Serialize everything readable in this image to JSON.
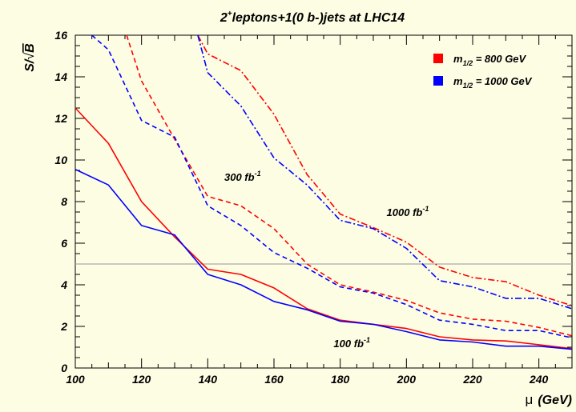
{
  "chart_data": {
    "type": "line",
    "title": {
      "base": "2",
      "sup": "+",
      "rest": "leptons+1(0 b-)jets at LHC14"
    },
    "xlabel": {
      "symbol": "μ",
      "unit": "(GeV)"
    },
    "ylabel": {
      "prefix": "S/",
      "sqrt_symbol": "√",
      "sqrt_arg": "B"
    },
    "xlim": [
      100,
      250
    ],
    "ylim": [
      0,
      16
    ],
    "x_ticks": [
      100,
      120,
      140,
      160,
      180,
      200,
      220,
      240
    ],
    "y_ticks": [
      0,
      2,
      4,
      6,
      8,
      10,
      12,
      14,
      16
    ],
    "grid": false,
    "reference_line": 5,
    "legend": {
      "position": "top-right",
      "entries": [
        {
          "label_base": "m",
          "label_sub": "1/2",
          "label_rest": " = 800 GeV",
          "color": "#ff0000"
        },
        {
          "label_base": "m",
          "label_sub": "1/2",
          "label_rest": " = 1000 GeV",
          "color": "#0000ff"
        }
      ]
    },
    "annotations": [
      {
        "text_base": "100 fb",
        "text_sup": "-1",
        "x": 178,
        "y": 1.0
      },
      {
        "text_base": "300 fb",
        "text_sup": "-1",
        "x": 145,
        "y": 9.0
      },
      {
        "text_base": "1000 fb",
        "text_sup": "-1",
        "x": 194,
        "y": 7.3
      }
    ],
    "series": [
      {
        "color": "#ff0000",
        "style": "solid",
        "luminosity": "100 fb-1",
        "x": [
          100,
          110,
          120,
          130,
          140,
          150,
          160,
          170,
          180,
          190,
          200,
          210,
          220,
          230,
          240,
          250
        ],
        "y": [
          12.5,
          10.8,
          8.0,
          6.3,
          4.75,
          4.5,
          3.85,
          2.85,
          2.3,
          2.1,
          1.9,
          1.5,
          1.35,
          1.3,
          1.12,
          0.93
        ]
      },
      {
        "color": "#0000ff",
        "style": "solid",
        "luminosity": "100 fb-1",
        "x": [
          100,
          110,
          120,
          130,
          140,
          150,
          160,
          170,
          180,
          190,
          200,
          210,
          220,
          230,
          240,
          250
        ],
        "y": [
          9.55,
          8.8,
          6.85,
          6.4,
          4.5,
          4.0,
          3.2,
          2.8,
          2.25,
          2.1,
          1.75,
          1.35,
          1.25,
          1.05,
          1.05,
          0.9
        ]
      },
      {
        "color": "#ff0000",
        "style": "dashed",
        "luminosity": "300 fb-1",
        "x": [
          115.5,
          120,
          130,
          140,
          150,
          160,
          170,
          180,
          190,
          200,
          210,
          220,
          230,
          240,
          250
        ],
        "y": [
          16,
          13.8,
          11.0,
          8.25,
          7.8,
          6.7,
          5.0,
          4.0,
          3.65,
          3.25,
          2.65,
          2.35,
          2.25,
          1.95,
          1.55
        ]
      },
      {
        "color": "#0000ff",
        "style": "dashed",
        "luminosity": "300 fb-1",
        "x": [
          105,
          110,
          120,
          130,
          140,
          150,
          160,
          170,
          180,
          190,
          200,
          210,
          220,
          230,
          240,
          250
        ],
        "y": [
          16,
          15.3,
          11.9,
          11.1,
          7.8,
          6.85,
          5.55,
          4.8,
          3.9,
          3.6,
          3.05,
          2.3,
          2.1,
          1.8,
          1.8,
          1.45
        ]
      },
      {
        "color": "#ff0000",
        "style": "dashdot",
        "luminosity": "1000 fb-1",
        "x": [
          137,
          140,
          150,
          160,
          170,
          180,
          190,
          200,
          210,
          220,
          230,
          240,
          250
        ],
        "y": [
          16,
          15.1,
          14.3,
          12.2,
          9.3,
          7.4,
          6.75,
          6.05,
          4.85,
          4.35,
          4.15,
          3.5,
          3.0
        ]
      },
      {
        "color": "#0000ff",
        "style": "dashdot",
        "luminosity": "1000 fb-1",
        "x": [
          137,
          140,
          150,
          160,
          170,
          180,
          190,
          200,
          210,
          220,
          230,
          240,
          250
        ],
        "y": [
          16,
          14.2,
          12.6,
          10.1,
          8.8,
          7.1,
          6.7,
          5.75,
          4.2,
          3.9,
          3.35,
          3.35,
          2.85
        ]
      }
    ]
  }
}
